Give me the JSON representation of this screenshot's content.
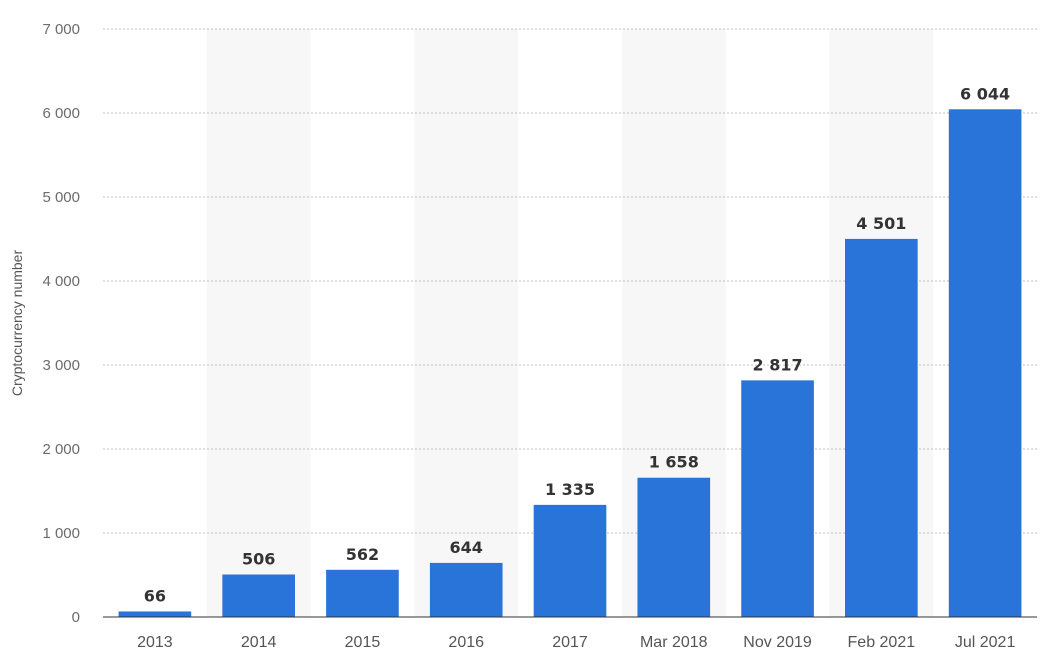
{
  "chart_data": {
    "type": "bar",
    "categories": [
      "2013",
      "2014",
      "2015",
      "2016",
      "2017",
      "Mar 2018",
      "Nov 2019",
      "Feb 2021",
      "Jul 2021"
    ],
    "values": [
      66,
      506,
      562,
      644,
      1335,
      1658,
      2817,
      4501,
      6044
    ],
    "value_labels": [
      "66",
      "506",
      "562",
      "644",
      "1 335",
      "1 658",
      "2 817",
      "4 501",
      "6 044"
    ],
    "ylabel": "Cryptocurrency number",
    "xlabel": "",
    "ylim": [
      0,
      7000
    ],
    "yticks": [
      0,
      1000,
      2000,
      3000,
      4000,
      5000,
      6000,
      7000
    ],
    "ytick_labels": [
      "0",
      "1 000",
      "2 000",
      "3 000",
      "4 000",
      "5 000",
      "6 000",
      "7 000"
    ],
    "grid": true,
    "bar_color": "#2874d9",
    "alt_band_color": "#f7f7f7",
    "grid_color": "#bfbfbf"
  }
}
